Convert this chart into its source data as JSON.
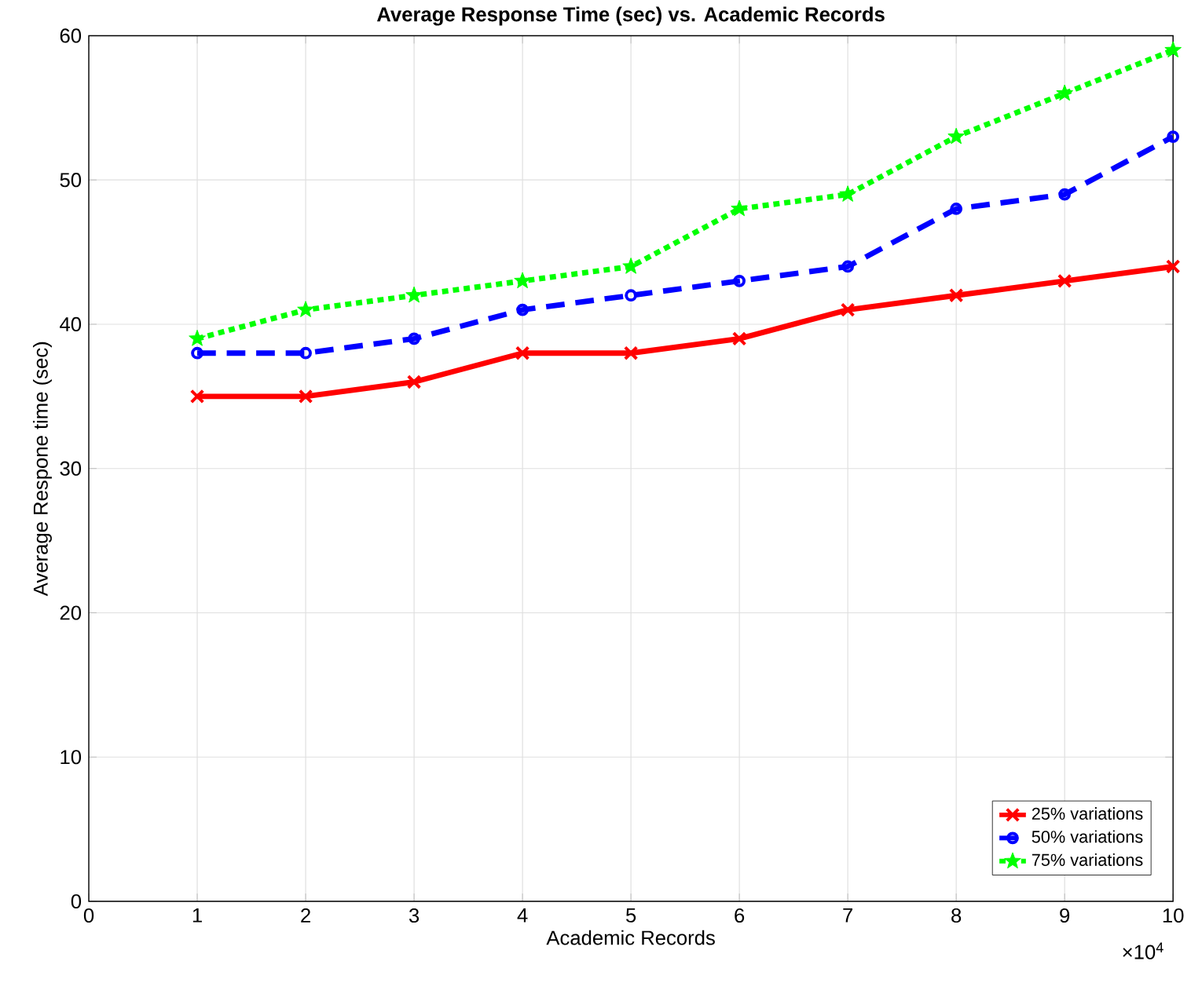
{
  "chart_data": {
    "type": "line",
    "title": "Average Response Time (sec) vs. Academic Records",
    "xlabel": "Academic Records",
    "ylabel": "Average Respone time (sec)",
    "x": [
      1,
      2,
      3,
      4,
      5,
      6,
      7,
      8,
      9,
      10
    ],
    "series": [
      {
        "name": "25% variations",
        "color": "#ff0000",
        "marker": "cross",
        "line_style": "solid",
        "values": [
          35,
          35,
          36,
          38,
          38,
          39,
          41,
          42,
          43,
          44
        ]
      },
      {
        "name": "50% variations",
        "color": "#0000ff",
        "marker": "circle",
        "line_style": "dashed",
        "values": [
          38,
          38,
          39,
          41,
          42,
          43,
          44,
          48,
          49,
          53
        ]
      },
      {
        "name": "75% variations",
        "color": "#00ff00",
        "marker": "star",
        "line_style": "dotted",
        "values": [
          39,
          41,
          42,
          43,
          44,
          48,
          49,
          53,
          56,
          59
        ]
      }
    ],
    "xlim": [
      0,
      10
    ],
    "xticks": [
      0,
      1,
      2,
      3,
      4,
      5,
      6,
      7,
      8,
      9,
      10
    ],
    "ylim": [
      0,
      60
    ],
    "yticks": [
      0,
      10,
      20,
      30,
      40,
      50,
      60
    ],
    "annotations": [
      "×10$^{4}$"
    ],
    "grid": true,
    "legend": "bottom right"
  }
}
